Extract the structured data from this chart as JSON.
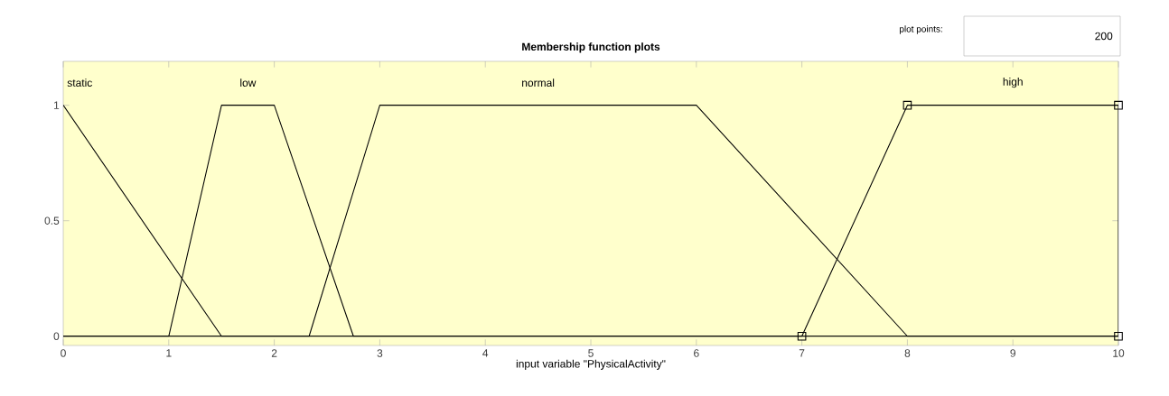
{
  "chart_data": {
    "type": "line",
    "title": "Membership function plots",
    "xlabel": "input variable \"PhysicalActivity\"",
    "annotations": [
      "plot points:",
      "200"
    ],
    "xlim": [
      0,
      10
    ],
    "ylim": [
      -0.04,
      1.19
    ],
    "xticks": [
      0,
      1,
      2,
      3,
      4,
      5,
      6,
      7,
      8,
      9,
      10
    ],
    "yticks": [
      0,
      0.5,
      1
    ],
    "grid": false,
    "marker": "none",
    "line_style": "solid",
    "series": [
      {
        "name": "static",
        "color": "#000000",
        "x": [
          0,
          1.5,
          10
        ],
        "values": [
          1,
          0,
          0
        ]
      },
      {
        "name": "low",
        "color": "#000000",
        "x": [
          0,
          1,
          1.5,
          2,
          2.75,
          10
        ],
        "values": [
          0,
          0,
          1,
          1,
          0,
          0
        ]
      },
      {
        "name": "normal",
        "color": "#000000",
        "x": [
          0,
          2.33,
          3,
          6,
          8,
          10
        ],
        "values": [
          0,
          0,
          1,
          1,
          0,
          0
        ]
      },
      {
        "name": "high",
        "color": "#000000",
        "x": [
          0,
          7,
          8,
          10,
          10
        ],
        "values": [
          0,
          0,
          1,
          1,
          0
        ]
      },
      {
        "type": "scatter",
        "color": "#000000",
        "marker": "square",
        "x": [
          7,
          8,
          10,
          10
        ],
        "values": [
          0,
          1,
          1,
          0
        ]
      }
    ]
  }
}
